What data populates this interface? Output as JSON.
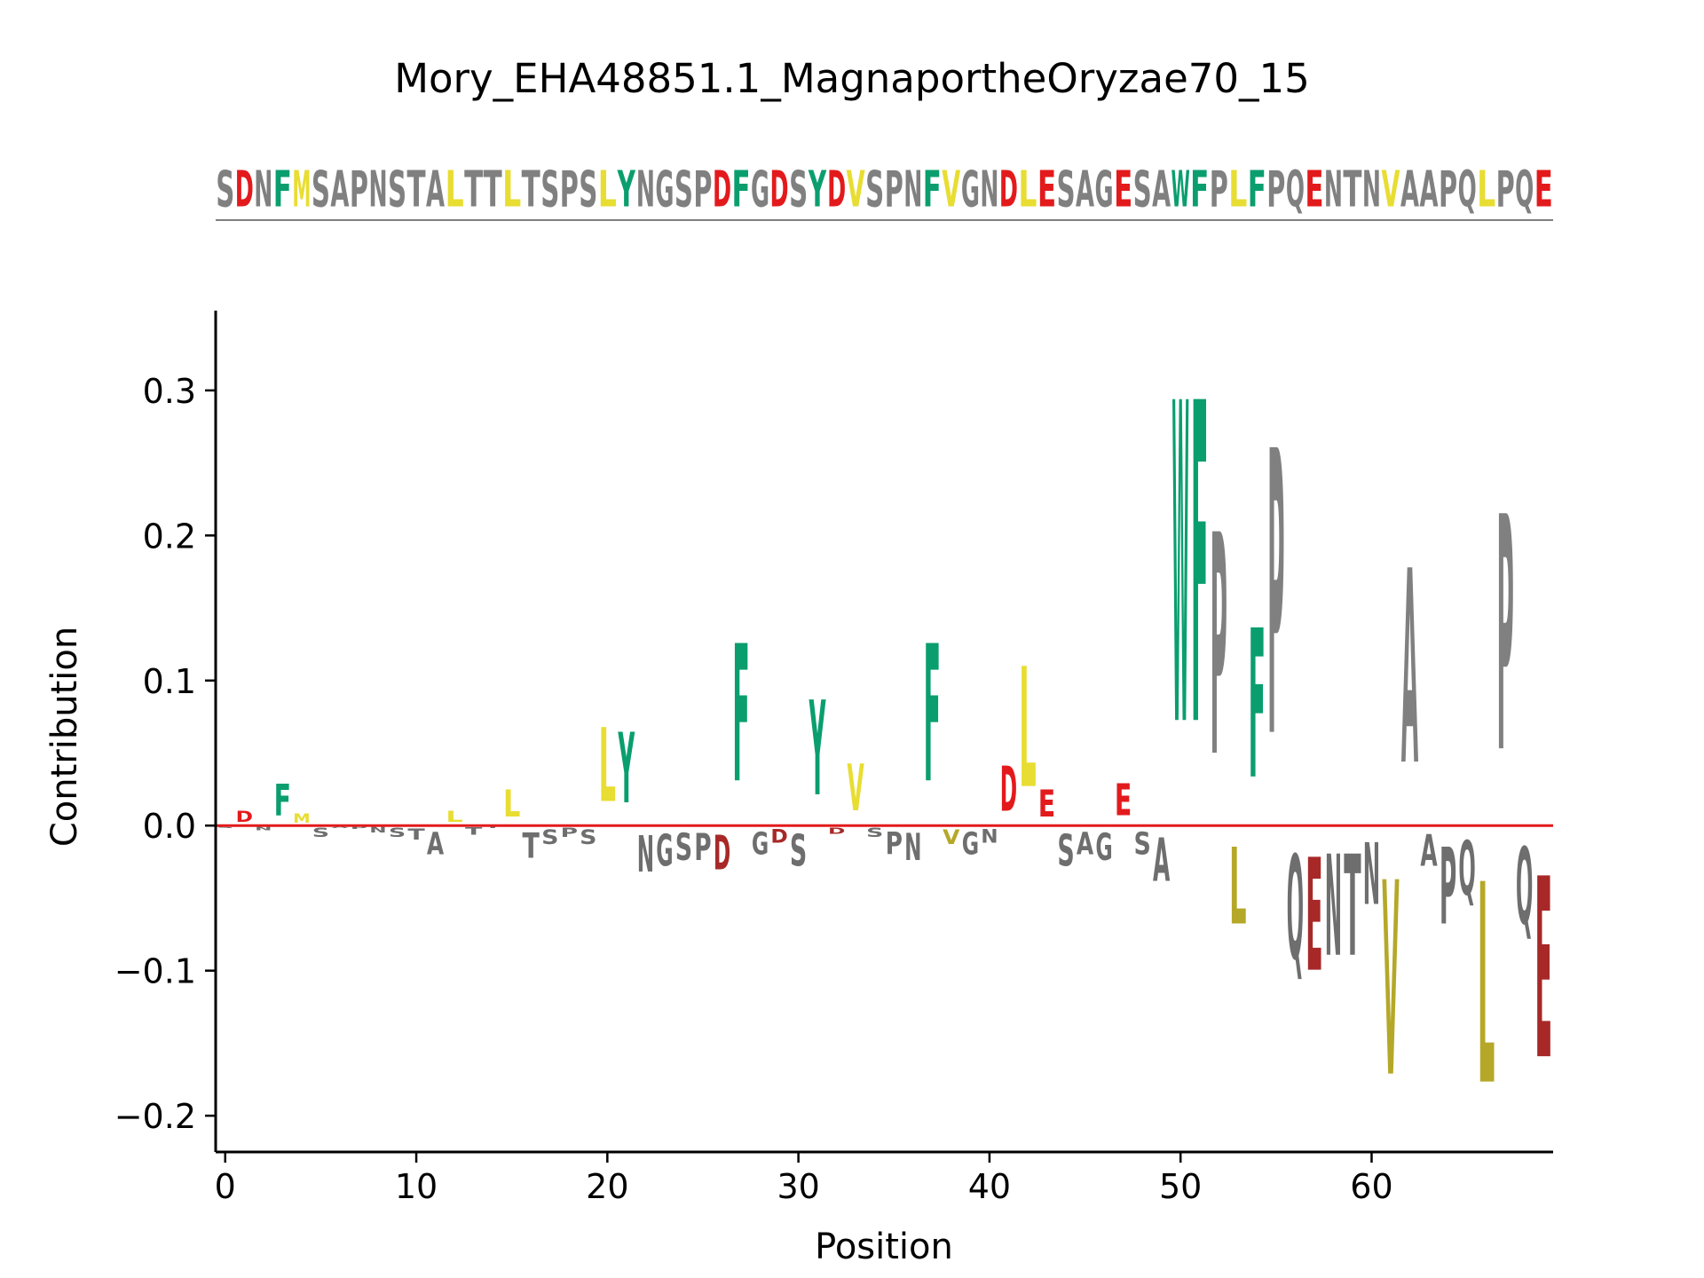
{
  "title": "Mory_EHA48851.1_MagnaportheOryzae70_15",
  "chart_data": {
    "type": "sequence-logo",
    "title": "Mory_EHA48851.1_MagnaportheOryzae70_15",
    "xlabel": "Position",
    "ylabel": "Contribution",
    "xlim": [
      -0.5,
      69.5
    ],
    "ylim": [
      -0.225,
      0.355
    ],
    "xticks": [
      0,
      10,
      20,
      30,
      40,
      50,
      60
    ],
    "yticks": [
      -0.2,
      -0.1,
      0.0,
      0.1,
      0.2,
      0.3
    ],
    "ytick_labels": [
      "−0.2",
      "−0.1",
      "0.0",
      "0.1",
      "0.2",
      "0.3"
    ],
    "grid": false,
    "legend": "none",
    "sequence": "SDNFMSAPNSTALTTLTSPSLYNGSPDFGDSYDVSPNFVGNDLESAGESAWFPLFPQENTNVAAPQLPQE",
    "colors": {
      "aromatic": "#0a9e6e",
      "hydrophobic": "#e8dd32",
      "acidic": "#e31a1c",
      "other": "#808080",
      "negative_other": "#6e6e6e",
      "negative_acidic": "#a82828",
      "negative_hydrophobic": "#b5a828",
      "zero_line": "#e31a1c"
    },
    "contributions": [
      -0.002,
      0.012,
      -0.004,
      0.035,
      0.01,
      -0.01,
      -0.002,
      -0.003,
      -0.006,
      -0.01,
      -0.012,
      -0.025,
      0.012,
      -0.008,
      -0.002,
      0.03,
      -0.028,
      -0.016,
      -0.01,
      -0.016,
      0.082,
      0.078,
      -0.04,
      -0.035,
      -0.03,
      -0.03,
      -0.038,
      0.152,
      -0.025,
      -0.015,
      -0.035,
      0.105,
      -0.007,
      0.052,
      -0.01,
      -0.025,
      -0.03,
      0.152,
      -0.016,
      -0.025,
      -0.015,
      0.05,
      0.133,
      0.03,
      -0.035,
      -0.025,
      -0.03,
      0.035,
      -0.025,
      -0.048,
      0.355,
      0.355,
      0.245,
      -0.085,
      0.165,
      0.315,
      -0.115,
      -0.125,
      -0.112,
      -0.112,
      -0.068,
      -0.215,
      0.215,
      -0.035,
      -0.085,
      -0.06,
      -0.222,
      0.26,
      -0.085,
      -0.2
    ]
  }
}
